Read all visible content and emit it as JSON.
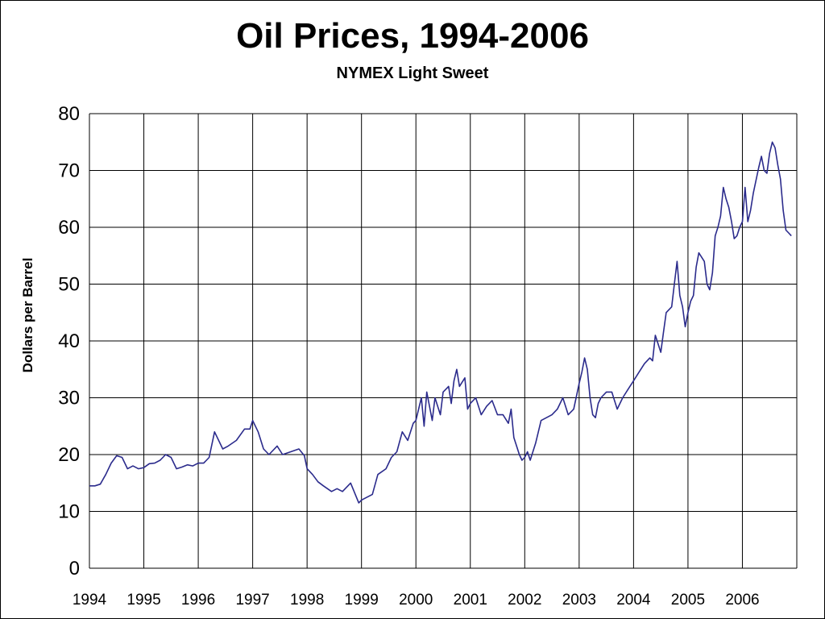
{
  "chart_data": {
    "type": "line",
    "title": "Oil Prices, 1994-2006",
    "subtitle": "NYMEX Light Sweet",
    "xlabel": "",
    "ylabel": "Dollars per Barrel",
    "xlim": [
      1994,
      2007
    ],
    "ylim": [
      0,
      80
    ],
    "x_ticks": [
      "1994",
      "1995",
      "1996",
      "1997",
      "1998",
      "1999",
      "2000",
      "2001",
      "2002",
      "2003",
      "2004",
      "2005",
      "2006"
    ],
    "y_ticks": [
      0,
      10,
      20,
      30,
      40,
      50,
      60,
      70,
      80
    ],
    "grid": true,
    "colors": {
      "line": "#2B2B8C",
      "grid": "#000000",
      "background": "#ffffff"
    },
    "series": [
      {
        "x": [
          1994.0,
          1994.1,
          1994.2,
          1994.3,
          1994.4,
          1994.5,
          1994.6,
          1994.7,
          1994.8,
          1994.9,
          1995.0,
          1995.1,
          1995.2,
          1995.3,
          1995.4,
          1995.5,
          1995.6,
          1995.7,
          1995.8,
          1995.9,
          1996.0,
          1996.1,
          1996.2,
          1996.3,
          1996.45,
          1996.55,
          1996.7,
          1996.85,
          1996.95,
          1997.0,
          1997.1,
          1997.2,
          1997.3,
          1997.45,
          1997.55,
          1997.7,
          1997.85,
          1997.95,
          1998.0,
          1998.1,
          1998.2,
          1998.3,
          1998.45,
          1998.55,
          1998.65,
          1998.8,
          1998.95,
          1999.0,
          1999.1,
          1999.2,
          1999.3,
          1999.45,
          1999.55,
          1999.65,
          1999.75,
          1999.85,
          1999.95,
          2000.0,
          2000.1,
          2000.15,
          2000.2,
          2000.3,
          2000.35,
          2000.45,
          2000.5,
          2000.6,
          2000.65,
          2000.7,
          2000.75,
          2000.8,
          2000.9,
          2000.95,
          2001.0,
          2001.1,
          2001.2,
          2001.3,
          2001.4,
          2001.5,
          2001.6,
          2001.7,
          2001.75,
          2001.8,
          2001.85,
          2001.9,
          2001.95,
          2002.0,
          2002.05,
          2002.1,
          2002.2,
          2002.3,
          2002.4,
          2002.5,
          2002.6,
          2002.7,
          2002.8,
          2002.9,
          2003.0,
          2003.05,
          2003.1,
          2003.15,
          2003.2,
          2003.25,
          2003.3,
          2003.35,
          2003.4,
          2003.5,
          2003.6,
          2003.7,
          2003.8,
          2003.9,
          2004.0,
          2004.1,
          2004.2,
          2004.3,
          2004.35,
          2004.4,
          2004.5,
          2004.55,
          2004.6,
          2004.7,
          2004.75,
          2004.8,
          2004.85,
          2004.9,
          2004.95,
          2005.0,
          2005.05,
          2005.1,
          2005.15,
          2005.2,
          2005.3,
          2005.35,
          2005.4,
          2005.45,
          2005.5,
          2005.55,
          2005.6,
          2005.65,
          2005.7,
          2005.75,
          2005.8,
          2005.85,
          2005.9,
          2005.95,
          2006.0,
          2006.05,
          2006.1,
          2006.15,
          2006.2,
          2006.3,
          2006.35,
          2006.4,
          2006.45,
          2006.5,
          2006.55,
          2006.6,
          2006.65,
          2006.7,
          2006.75,
          2006.8,
          2006.85,
          2006.9
        ],
        "values": [
          14.5,
          14.5,
          14.8,
          16.5,
          18.5,
          19.8,
          19.5,
          17.5,
          18.0,
          17.5,
          17.7,
          18.4,
          18.5,
          19.0,
          20.0,
          19.5,
          17.5,
          17.8,
          18.2,
          18.0,
          18.5,
          18.5,
          19.5,
          24.0,
          21.0,
          21.5,
          22.5,
          24.5,
          24.5,
          26.0,
          24.0,
          21.0,
          20.0,
          21.5,
          20.0,
          20.5,
          21.0,
          19.8,
          17.5,
          16.5,
          15.2,
          14.5,
          13.5,
          14.0,
          13.5,
          15.0,
          11.5,
          12.0,
          12.5,
          13.0,
          16.5,
          17.5,
          19.5,
          20.5,
          24.0,
          22.5,
          25.5,
          26.0,
          30.0,
          25.0,
          31.0,
          26.0,
          30.0,
          27.0,
          31.0,
          32.0,
          29.0,
          33.0,
          35.0,
          32.0,
          33.5,
          28.0,
          29.0,
          30.0,
          27.0,
          28.5,
          29.5,
          27.0,
          27.0,
          25.5,
          28.0,
          23.0,
          21.5,
          20.0,
          19.0,
          19.5,
          20.5,
          19.0,
          22.0,
          26.0,
          26.5,
          27.0,
          28.0,
          30.0,
          27.0,
          28.0,
          32.5,
          34.5,
          37.0,
          35.0,
          30.0,
          27.0,
          26.5,
          29.0,
          30.0,
          31.0,
          31.0,
          28.0,
          30.0,
          31.5,
          33.0,
          34.5,
          36.0,
          37.0,
          36.5,
          41.0,
          38.0,
          41.5,
          45.0,
          46.0,
          50.0,
          54.0,
          48.0,
          46.0,
          42.5,
          45.0,
          47.0,
          48.0,
          53.0,
          55.5,
          54.0,
          50.0,
          49.0,
          52.0,
          58.5,
          60.0,
          62.0,
          67.0,
          65.0,
          63.5,
          61.0,
          58.0,
          58.5,
          60.0,
          61.0,
          67.0,
          61.0,
          63.0,
          66.0,
          70.5,
          72.5,
          70.0,
          69.5,
          73.0,
          75.0,
          74.0,
          71.0,
          68.5,
          63.0,
          59.5,
          59.0,
          58.5
        ]
      }
    ]
  }
}
